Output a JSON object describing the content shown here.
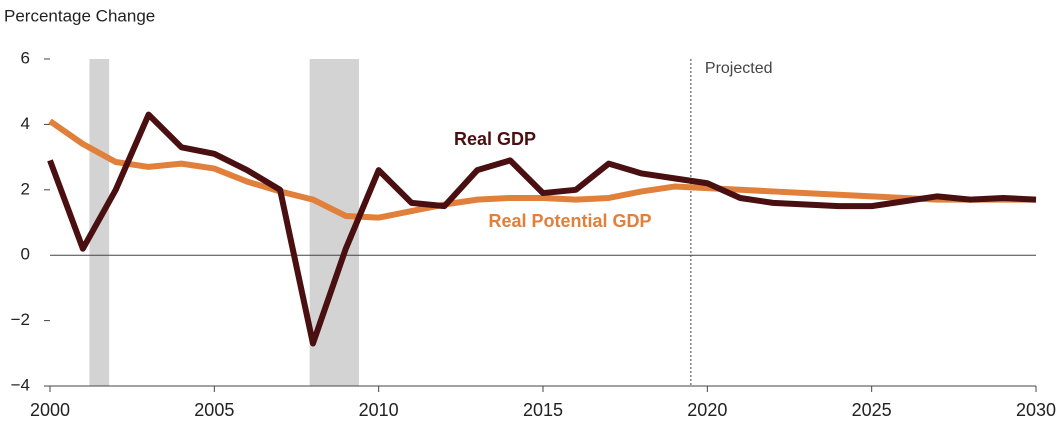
{
  "chart_data": {
    "type": "line",
    "y_axis_label": "Percentage Change",
    "x": [
      2000,
      2001,
      2002,
      2003,
      2004,
      2005,
      2006,
      2007,
      2008,
      2009,
      2010,
      2011,
      2012,
      2013,
      2014,
      2015,
      2016,
      2017,
      2018,
      2019,
      2020,
      2021,
      2022,
      2023,
      2024,
      2025,
      2026,
      2027,
      2028,
      2029,
      2030
    ],
    "series": [
      {
        "name": "Real GDP",
        "color": "#4a0f10",
        "values": [
          2.9,
          0.2,
          2.0,
          4.3,
          3.3,
          3.1,
          2.6,
          2.0,
          -2.7,
          0.2,
          2.6,
          1.6,
          1.5,
          2.6,
          2.9,
          1.9,
          2.0,
          2.8,
          2.5,
          2.35,
          2.2,
          1.75,
          1.6,
          1.55,
          1.5,
          1.5,
          1.65,
          1.8,
          1.7,
          1.75,
          1.7
        ]
      },
      {
        "name": "Real Potential GDP",
        "color": "#e0803a",
        "values": [
          4.1,
          3.4,
          2.85,
          2.7,
          2.8,
          2.65,
          2.25,
          1.95,
          1.7,
          1.2,
          1.15,
          1.35,
          1.55,
          1.7,
          1.75,
          1.75,
          1.7,
          1.75,
          1.95,
          2.1,
          2.05,
          2.0,
          1.95,
          1.9,
          1.85,
          1.8,
          1.75,
          1.7,
          1.7,
          1.7,
          1.7
        ]
      }
    ],
    "shaded_regions": [
      [
        2001.2,
        2001.8
      ],
      [
        2007.9,
        2009.4
      ]
    ],
    "projection_start": 2019.5,
    "projection_label": "Projected",
    "xlim": [
      2000,
      2030
    ],
    "xticks": [
      2000,
      2005,
      2010,
      2015,
      2020,
      2025,
      2030
    ],
    "ylim": [
      -4,
      6
    ],
    "yticks": [
      {
        "value": -4,
        "label": "−4"
      },
      {
        "value": -2,
        "label": "−2"
      },
      0,
      2,
      4,
      6
    ]
  }
}
